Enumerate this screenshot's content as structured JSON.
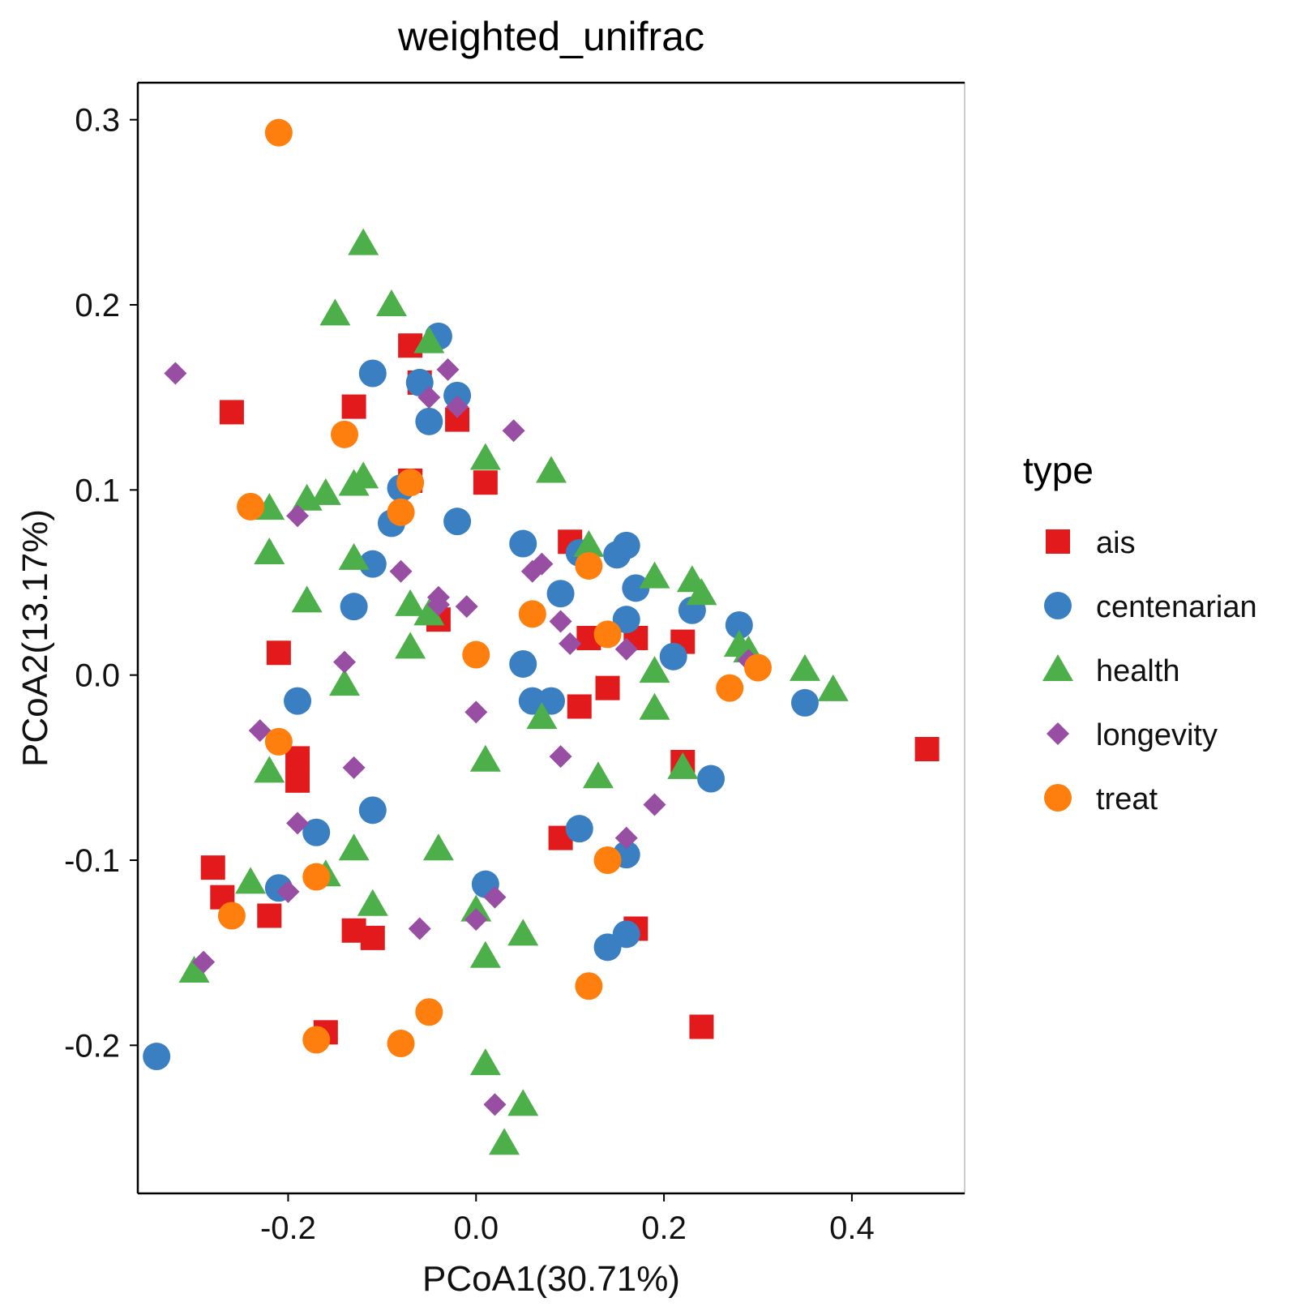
{
  "chart_data": {
    "type": "scatter",
    "title": "weighted_unifrac",
    "xlabel": "PCoA1(30.71%)",
    "ylabel": "PCoA2(13.17%)",
    "xlim": [
      -0.36,
      0.52
    ],
    "ylim": [
      -0.28,
      0.32
    ],
    "xticks": [
      -0.2,
      0.0,
      0.2,
      0.4
    ],
    "xtick_labels": [
      "-0.2",
      "0.0",
      "0.2",
      "0.4"
    ],
    "yticks": [
      -0.2,
      -0.1,
      0.0,
      0.1,
      0.2,
      0.3
    ],
    "ytick_labels": [
      "-0.2",
      "-0.1",
      "0.0",
      "0.1",
      "0.2",
      "0.3"
    ],
    "grid": false,
    "legend": {
      "title": "type",
      "position": "right"
    },
    "series": [
      {
        "name": "ais",
        "shape": "square",
        "color": "#e31a1c",
        "points": [
          [
            -0.07,
            0.178
          ],
          [
            -0.06,
            0.158
          ],
          [
            -0.02,
            0.138
          ],
          [
            -0.26,
            0.142
          ],
          [
            -0.13,
            0.145
          ],
          [
            -0.07,
            0.105
          ],
          [
            0.01,
            0.104
          ],
          [
            0.1,
            0.072
          ],
          [
            -0.04,
            0.03
          ],
          [
            0.12,
            0.02
          ],
          [
            0.17,
            0.02
          ],
          [
            0.22,
            0.018
          ],
          [
            -0.21,
            0.012
          ],
          [
            0.14,
            -0.007
          ],
          [
            0.11,
            -0.017
          ],
          [
            -0.19,
            -0.045
          ],
          [
            -0.19,
            -0.057
          ],
          [
            0.22,
            -0.047
          ],
          [
            0.48,
            -0.04
          ],
          [
            0.09,
            -0.088
          ],
          [
            -0.28,
            -0.104
          ],
          [
            -0.27,
            -0.12
          ],
          [
            -0.22,
            -0.13
          ],
          [
            -0.13,
            -0.138
          ],
          [
            -0.11,
            -0.142
          ],
          [
            0.17,
            -0.137
          ],
          [
            -0.16,
            -0.193
          ],
          [
            0.24,
            -0.19
          ]
        ]
      },
      {
        "name": "centenarian",
        "shape": "circle",
        "color": "#3a7fc1",
        "points": [
          [
            -0.04,
            0.183
          ],
          [
            -0.11,
            0.163
          ],
          [
            -0.06,
            0.158
          ],
          [
            -0.02,
            0.151
          ],
          [
            -0.05,
            0.137
          ],
          [
            -0.08,
            0.101
          ],
          [
            -0.09,
            0.082
          ],
          [
            -0.02,
            0.083
          ],
          [
            0.05,
            0.071
          ],
          [
            0.16,
            0.07
          ],
          [
            0.15,
            0.065
          ],
          [
            0.11,
            0.066
          ],
          [
            -0.11,
            0.06
          ],
          [
            0.09,
            0.044
          ],
          [
            0.17,
            0.047
          ],
          [
            -0.13,
            0.037
          ],
          [
            0.23,
            0.035
          ],
          [
            0.16,
            0.03
          ],
          [
            0.28,
            0.027
          ],
          [
            0.21,
            0.01
          ],
          [
            0.05,
            0.006
          ],
          [
            -0.19,
            -0.014
          ],
          [
            0.06,
            -0.014
          ],
          [
            0.08,
            -0.014
          ],
          [
            0.35,
            -0.015
          ],
          [
            0.25,
            -0.056
          ],
          [
            -0.11,
            -0.073
          ],
          [
            -0.17,
            -0.085
          ],
          [
            0.11,
            -0.083
          ],
          [
            0.16,
            -0.097
          ],
          [
            0.01,
            -0.113
          ],
          [
            -0.21,
            -0.115
          ],
          [
            0.14,
            -0.147
          ],
          [
            0.16,
            -0.14
          ],
          [
            -0.34,
            -0.206
          ]
        ]
      },
      {
        "name": "health",
        "shape": "triangle",
        "color": "#4daf4a",
        "points": [
          [
            -0.12,
            0.233
          ],
          [
            -0.09,
            0.2
          ],
          [
            -0.15,
            0.195
          ],
          [
            -0.05,
            0.18
          ],
          [
            0.01,
            0.117
          ],
          [
            0.08,
            0.11
          ],
          [
            -0.12,
            0.107
          ],
          [
            -0.13,
            0.103
          ],
          [
            -0.16,
            0.098
          ],
          [
            -0.18,
            0.095
          ],
          [
            -0.22,
            0.09
          ],
          [
            -0.22,
            0.066
          ],
          [
            -0.13,
            0.063
          ],
          [
            0.12,
            0.07
          ],
          [
            0.23,
            0.051
          ],
          [
            0.19,
            0.053
          ],
          [
            0.24,
            0.044
          ],
          [
            -0.18,
            0.04
          ],
          [
            -0.07,
            0.038
          ],
          [
            -0.05,
            0.033
          ],
          [
            0.28,
            0.016
          ],
          [
            0.29,
            0.013
          ],
          [
            -0.07,
            0.015
          ],
          [
            0.35,
            0.003
          ],
          [
            0.19,
            0.002
          ],
          [
            0.38,
            -0.008
          ],
          [
            -0.14,
            -0.005
          ],
          [
            0.19,
            -0.018
          ],
          [
            0.07,
            -0.023
          ],
          [
            0.01,
            -0.046
          ],
          [
            0.13,
            -0.055
          ],
          [
            0.22,
            -0.05
          ],
          [
            -0.22,
            -0.052
          ],
          [
            -0.13,
            -0.094
          ],
          [
            -0.04,
            -0.094
          ],
          [
            -0.16,
            -0.108
          ],
          [
            -0.24,
            -0.112
          ],
          [
            -0.11,
            -0.124
          ],
          [
            0.0,
            -0.127
          ],
          [
            0.05,
            -0.14
          ],
          [
            0.01,
            -0.152
          ],
          [
            -0.3,
            -0.16
          ],
          [
            0.01,
            -0.21
          ],
          [
            0.05,
            -0.232
          ],
          [
            0.03,
            -0.253
          ]
        ]
      },
      {
        "name": "longevity",
        "shape": "diamond",
        "color": "#984ea3",
        "points": [
          [
            -0.32,
            0.163
          ],
          [
            -0.03,
            0.165
          ],
          [
            -0.05,
            0.15
          ],
          [
            -0.02,
            0.145
          ],
          [
            0.04,
            0.132
          ],
          [
            -0.19,
            0.086
          ],
          [
            0.07,
            0.06
          ],
          [
            0.06,
            0.056
          ],
          [
            -0.08,
            0.056
          ],
          [
            -0.04,
            0.042
          ],
          [
            -0.04,
            0.038
          ],
          [
            -0.01,
            0.037
          ],
          [
            0.09,
            0.029
          ],
          [
            0.1,
            0.017
          ],
          [
            0.16,
            0.014
          ],
          [
            0.29,
            0.008
          ],
          [
            -0.14,
            0.007
          ],
          [
            0.0,
            -0.02
          ],
          [
            -0.23,
            -0.03
          ],
          [
            0.09,
            -0.044
          ],
          [
            -0.13,
            -0.05
          ],
          [
            0.19,
            -0.07
          ],
          [
            -0.19,
            -0.08
          ],
          [
            0.16,
            -0.088
          ],
          [
            0.02,
            -0.12
          ],
          [
            -0.2,
            -0.117
          ],
          [
            0.0,
            -0.132
          ],
          [
            -0.06,
            -0.137
          ],
          [
            -0.29,
            -0.155
          ],
          [
            0.02,
            -0.232
          ]
        ]
      },
      {
        "name": "treat",
        "shape": "circle",
        "color": "#ff7f0e",
        "points": [
          [
            -0.21,
            0.293
          ],
          [
            -0.14,
            0.13
          ],
          [
            -0.24,
            0.091
          ],
          [
            -0.08,
            0.088
          ],
          [
            -0.07,
            0.104
          ],
          [
            0.12,
            0.059
          ],
          [
            0.06,
            0.033
          ],
          [
            0.14,
            0.022
          ],
          [
            0.0,
            0.011
          ],
          [
            0.27,
            -0.007
          ],
          [
            0.3,
            0.004
          ],
          [
            -0.21,
            -0.036
          ],
          [
            0.14,
            -0.1
          ],
          [
            -0.17,
            -0.109
          ],
          [
            -0.26,
            -0.13
          ],
          [
            0.12,
            -0.168
          ],
          [
            -0.05,
            -0.182
          ],
          [
            -0.17,
            -0.197
          ],
          [
            -0.08,
            -0.199
          ]
        ]
      }
    ]
  }
}
